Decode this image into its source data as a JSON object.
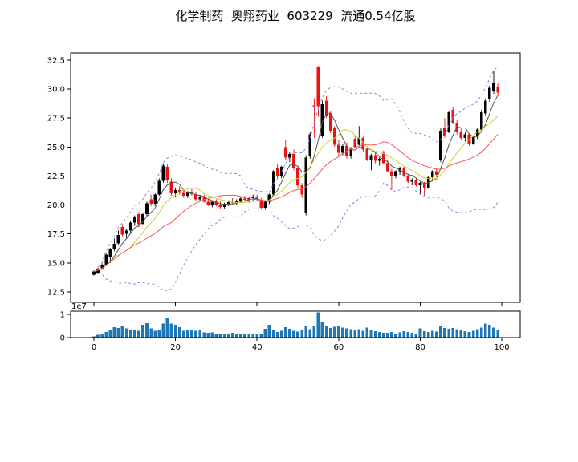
{
  "title": "化学制药  奥翔药业  603229  流通0.54亿股",
  "colors": {
    "up_candle": "#000000",
    "down_candle": "#ee1111",
    "ma_fast": "#555555",
    "ma_mid": "#cfcf30",
    "ma_slow": "#ff5555",
    "bollinger_band": "#8888dd",
    "volume_bar": "#1f77b4",
    "frame": "#000000",
    "background": "#ffffff"
  },
  "chart_data": {
    "type": "candlestick",
    "title": "化学制药  奥翔药业  603229  流通0.54亿股",
    "panels": [
      "price_with_ma_and_bollinger",
      "volume"
    ],
    "ohlc": [
      [
        14.0,
        14.35,
        13.9,
        14.25
      ],
      [
        14.15,
        14.6,
        14.05,
        14.5
      ],
      [
        14.5,
        14.95,
        14.4,
        14.8
      ],
      [
        14.85,
        15.8,
        14.75,
        15.7
      ],
      [
        15.5,
        16.3,
        15.0,
        16.2
      ],
      [
        16.2,
        17.1,
        16.0,
        16.65
      ],
      [
        16.7,
        17.8,
        16.6,
        17.4
      ],
      [
        18.1,
        18.35,
        17.3,
        17.45
      ],
      [
        17.5,
        17.9,
        17.1,
        17.8
      ],
      [
        17.8,
        18.6,
        17.6,
        18.5
      ],
      [
        18.5,
        19.1,
        18.2,
        18.95
      ],
      [
        19.2,
        19.4,
        18.1,
        18.35
      ],
      [
        18.4,
        19.3,
        18.3,
        19.2
      ],
      [
        19.2,
        20.3,
        19.0,
        20.15
      ],
      [
        20.5,
        20.9,
        19.9,
        20.1
      ],
      [
        20.1,
        21.0,
        19.9,
        20.9
      ],
      [
        20.9,
        22.3,
        20.8,
        22.1
      ],
      [
        22.1,
        23.6,
        21.9,
        23.4
      ],
      [
        23.3,
        23.5,
        21.9,
        22.1
      ],
      [
        22.0,
        22.3,
        20.8,
        21.0
      ],
      [
        21.0,
        21.5,
        20.7,
        21.3
      ],
      [
        21.3,
        21.6,
        20.9,
        21.05
      ],
      [
        21.05,
        21.3,
        20.6,
        20.8
      ],
      [
        20.8,
        21.2,
        20.6,
        21.1
      ],
      [
        21.1,
        21.4,
        20.8,
        20.95
      ],
      [
        20.95,
        21.1,
        20.4,
        20.5
      ],
      [
        20.5,
        20.9,
        20.3,
        20.75
      ],
      [
        20.75,
        20.9,
        20.2,
        20.3
      ],
      [
        20.3,
        20.5,
        19.9,
        20.05
      ],
      [
        20.05,
        20.4,
        19.8,
        20.3
      ],
      [
        20.3,
        20.5,
        19.9,
        20.0
      ],
      [
        20.0,
        20.3,
        19.7,
        19.85
      ],
      [
        19.85,
        20.2,
        19.7,
        20.1
      ],
      [
        20.1,
        20.4,
        19.9,
        20.25
      ],
      [
        20.25,
        20.6,
        20.1,
        20.2
      ],
      [
        20.2,
        20.5,
        20.0,
        20.4
      ],
      [
        20.4,
        20.7,
        20.2,
        20.55
      ],
      [
        20.55,
        20.8,
        20.3,
        20.45
      ],
      [
        20.45,
        20.7,
        20.2,
        20.6
      ],
      [
        20.6,
        20.9,
        20.4,
        20.75
      ],
      [
        20.75,
        20.9,
        20.3,
        20.45
      ],
      [
        20.45,
        20.6,
        19.6,
        19.75
      ],
      [
        19.75,
        20.4,
        19.6,
        20.3
      ],
      [
        20.3,
        21.0,
        20.1,
        20.9
      ],
      [
        20.9,
        23.0,
        20.8,
        22.9
      ],
      [
        23.2,
        23.5,
        22.3,
        22.5
      ],
      [
        22.5,
        23.4,
        22.3,
        23.3
      ],
      [
        25.0,
        25.6,
        23.9,
        24.1
      ],
      [
        24.1,
        24.6,
        23.7,
        24.4
      ],
      [
        24.4,
        24.8,
        23.0,
        23.2
      ],
      [
        23.2,
        23.4,
        21.5,
        21.7
      ],
      [
        21.7,
        21.9,
        20.6,
        20.9
      ],
      [
        19.3,
        24.3,
        19.1,
        24.1
      ],
      [
        24.2,
        26.3,
        24.0,
        26.1
      ],
      [
        28.6,
        29.2,
        25.8,
        28.4
      ],
      [
        31.9,
        32.0,
        27.6,
        28.5
      ],
      [
        26.0,
        29.0,
        25.8,
        28.7
      ],
      [
        29.0,
        29.4,
        27.5,
        27.7
      ],
      [
        27.9,
        28.1,
        26.2,
        26.4
      ],
      [
        26.6,
        26.8,
        25.0,
        25.2
      ],
      [
        25.2,
        25.6,
        24.2,
        24.5
      ],
      [
        24.5,
        25.3,
        24.3,
        25.1
      ],
      [
        25.1,
        25.4,
        24.0,
        24.2
      ],
      [
        24.2,
        25.0,
        24.0,
        24.9
      ],
      [
        25.7,
        25.9,
        24.9,
        25.0
      ],
      [
        25.2,
        26.8,
        25.1,
        25.8
      ],
      [
        25.8,
        25.9,
        24.6,
        24.8
      ],
      [
        24.8,
        25.0,
        23.8,
        23.9
      ],
      [
        23.9,
        24.4,
        23.0,
        24.3
      ],
      [
        24.3,
        24.5,
        23.6,
        23.8
      ],
      [
        23.8,
        24.1,
        23.4,
        24.0
      ],
      [
        24.5,
        24.7,
        23.5,
        23.6
      ],
      [
        23.6,
        23.9,
        22.8,
        22.9
      ],
      [
        22.9,
        23.1,
        21.3,
        22.5
      ],
      [
        22.5,
        23.0,
        22.3,
        22.9
      ],
      [
        22.9,
        23.3,
        22.6,
        23.2
      ],
      [
        23.2,
        23.3,
        22.4,
        22.5
      ],
      [
        22.5,
        22.7,
        21.9,
        22.0
      ],
      [
        22.0,
        22.3,
        21.7,
        22.2
      ],
      [
        22.2,
        22.3,
        21.6,
        21.7
      ],
      [
        21.7,
        22.0,
        20.9,
        21.9
      ],
      [
        21.9,
        22.0,
        20.8,
        21.5
      ],
      [
        21.5,
        22.5,
        21.4,
        22.4
      ],
      [
        22.4,
        23.0,
        22.2,
        22.9
      ],
      [
        22.9,
        23.2,
        22.4,
        22.6
      ],
      [
        23.9,
        26.6,
        23.7,
        26.4
      ],
      [
        26.6,
        27.5,
        25.8,
        26.0
      ],
      [
        26.3,
        28.1,
        26.2,
        28.0
      ],
      [
        28.2,
        28.4,
        27.0,
        27.1
      ],
      [
        27.1,
        27.3,
        26.1,
        26.3
      ],
      [
        26.3,
        26.6,
        25.6,
        25.8
      ],
      [
        25.8,
        26.3,
        25.5,
        26.1
      ],
      [
        26.1,
        26.2,
        25.1,
        25.3
      ],
      [
        25.3,
        26.0,
        25.2,
        25.9
      ],
      [
        25.9,
        26.6,
        25.7,
        26.5
      ],
      [
        26.5,
        28.2,
        26.4,
        28.0
      ],
      [
        27.9,
        29.2,
        27.7,
        29.0
      ],
      [
        29.1,
        30.3,
        28.9,
        30.1
      ],
      [
        29.8,
        31.6,
        29.6,
        30.5
      ],
      [
        30.2,
        30.5,
        29.4,
        29.7
      ]
    ],
    "volume": [
      500000,
      1200000,
      1500000,
      2500000,
      3500000,
      4500000,
      4200000,
      5000000,
      4000000,
      3500000,
      3200000,
      3000000,
      5500000,
      6200000,
      4000000,
      3000000,
      3500000,
      6000000,
      8300000,
      6000000,
      5500000,
      4500000,
      3000000,
      3200000,
      3500000,
      3000000,
      3300000,
      2200000,
      2000000,
      2200000,
      1800000,
      1600000,
      1800000,
      1500000,
      2000000,
      1600000,
      1400000,
      1800000,
      1500000,
      1700000,
      1500000,
      1800000,
      3800000,
      5500000,
      3500000,
      2500000,
      3000000,
      4500000,
      3800000,
      3000000,
      2600000,
      3400000,
      5000000,
      3600000,
      5200000,
      10800000,
      6500000,
      4800000,
      4200000,
      4600000,
      5000000,
      4400000,
      4000000,
      3600000,
      3200000,
      3600000,
      3000000,
      4400000,
      3400000,
      2800000,
      2400000,
      2000000,
      2000000,
      2400000,
      1800000,
      2200000,
      2800000,
      2400000,
      2000000,
      1800000,
      4000000,
      2800000,
      2400000,
      3000000,
      2600000,
      5200000,
      4200000,
      3800000,
      4200000,
      3600000,
      3200000,
      2800000,
      2400000,
      3000000,
      3600000,
      4400000,
      6000000,
      5600000,
      4400000,
      3400000
    ],
    "overlays": {
      "ma_windows": [
        5,
        10,
        20
      ],
      "bollinger": {
        "window": 20,
        "mult": 2.2
      }
    },
    "price_axis": {
      "lim": [
        11.6,
        33.12
      ],
      "ticks": [
        {
          "value": 12.5,
          "label": "12.5"
        },
        {
          "value": 15.0,
          "label": "15.0"
        },
        {
          "value": 17.5,
          "label": "17.5"
        },
        {
          "value": 20.0,
          "label": "20.0"
        },
        {
          "value": 22.5,
          "label": "22.5"
        },
        {
          "value": 25.0,
          "label": "25.0"
        },
        {
          "value": 27.5,
          "label": "27.5"
        },
        {
          "value": 30.0,
          "label": "30.0"
        },
        {
          "value": 32.5,
          "label": "32.5"
        }
      ]
    },
    "index_axis": {
      "lim": [
        -5.7,
        104.5
      ],
      "ticks": [
        {
          "value": 0,
          "label": "0"
        },
        {
          "value": 20,
          "label": "20"
        },
        {
          "value": 40,
          "label": "40"
        },
        {
          "value": 60,
          "label": "60"
        },
        {
          "value": 80,
          "label": "80"
        },
        {
          "value": 100,
          "label": "100"
        }
      ]
    },
    "volume_axis": {
      "lim": [
        0,
        11400000
      ],
      "offset_label": "1e7",
      "ticks": [
        {
          "value": 0,
          "label": "0"
        },
        {
          "value": 10000000,
          "label": "1"
        }
      ]
    }
  }
}
